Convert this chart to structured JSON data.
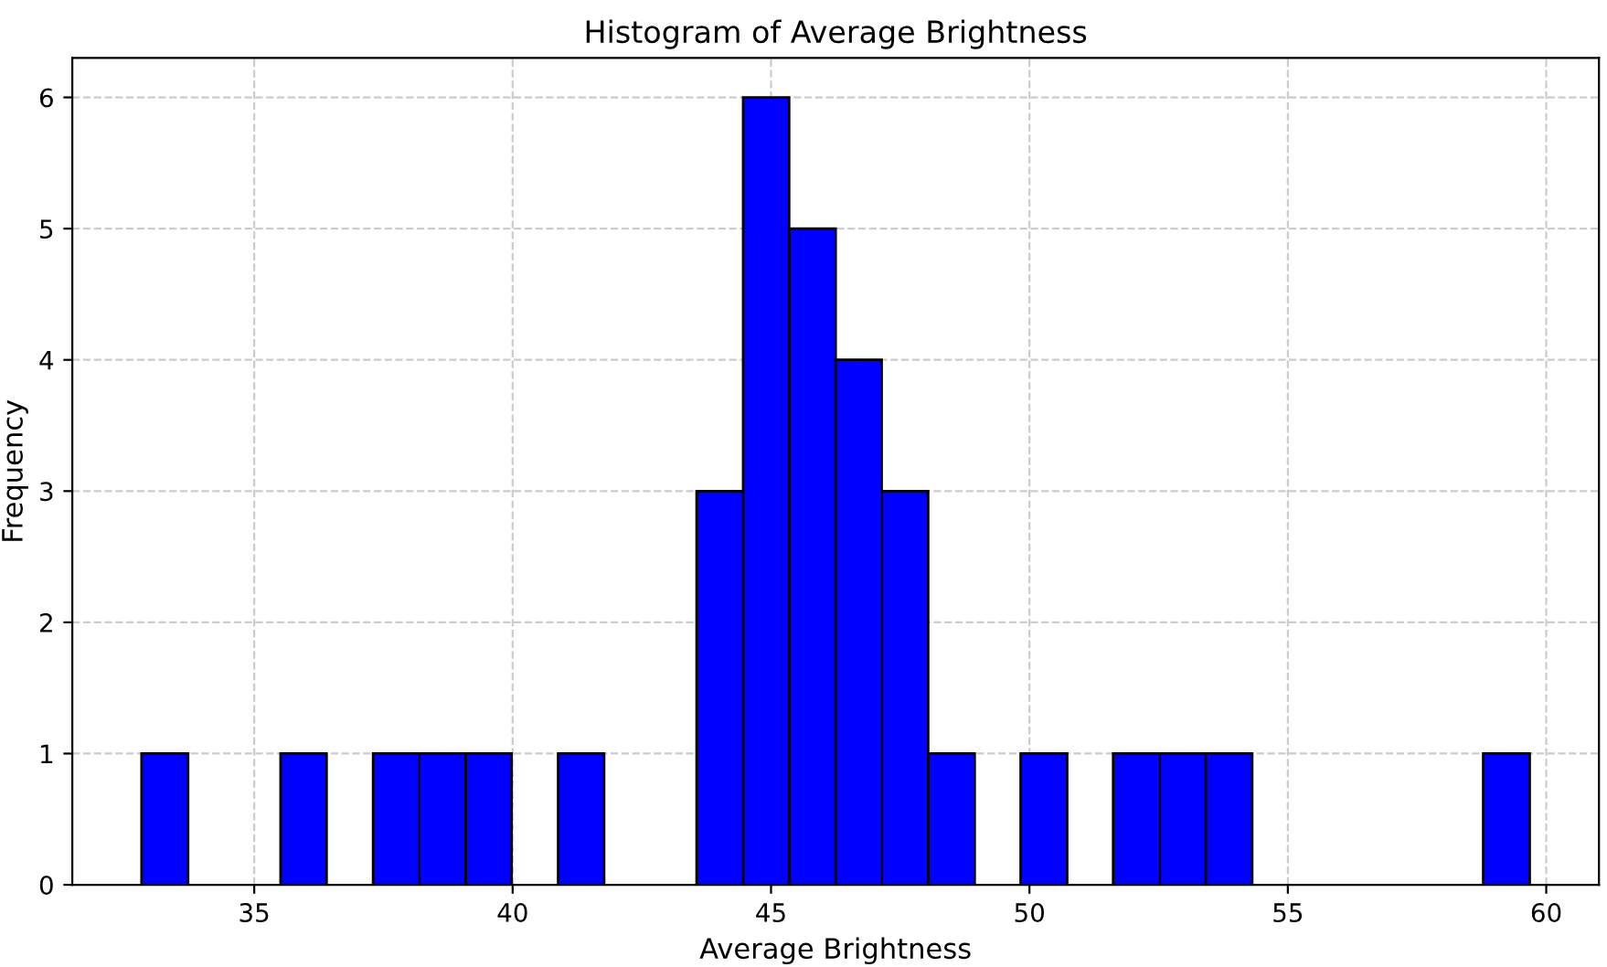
{
  "chart_data": {
    "type": "histogram",
    "title": "Histogram of Average Brightness",
    "xlabel": "Average Brightness",
    "ylabel": "Frequency",
    "bins": [
      32.82,
      33.72,
      35.51,
      36.4,
      37.3,
      38.19,
      39.09,
      39.98,
      40.88,
      41.77,
      43.56,
      44.46,
      45.35,
      46.25,
      47.14,
      48.04,
      48.94,
      49.83,
      50.73,
      51.62,
      52.52,
      53.41,
      54.31,
      58.78,
      59.68
    ],
    "values": [
      1,
      0,
      1,
      0,
      1,
      1,
      1,
      0,
      1,
      0,
      3,
      6,
      5,
      4,
      3,
      1,
      0,
      1,
      0,
      1,
      1,
      1,
      0,
      1
    ],
    "color": "#0000ff",
    "xlim": [
      31.48,
      61.02
    ],
    "ylim": [
      0,
      6.3
    ],
    "xticks": [
      35,
      40,
      45,
      50,
      55,
      60
    ],
    "yticks": [
      0,
      1,
      2,
      3,
      4,
      5,
      6
    ],
    "grid": true,
    "line_style": "dashed"
  }
}
